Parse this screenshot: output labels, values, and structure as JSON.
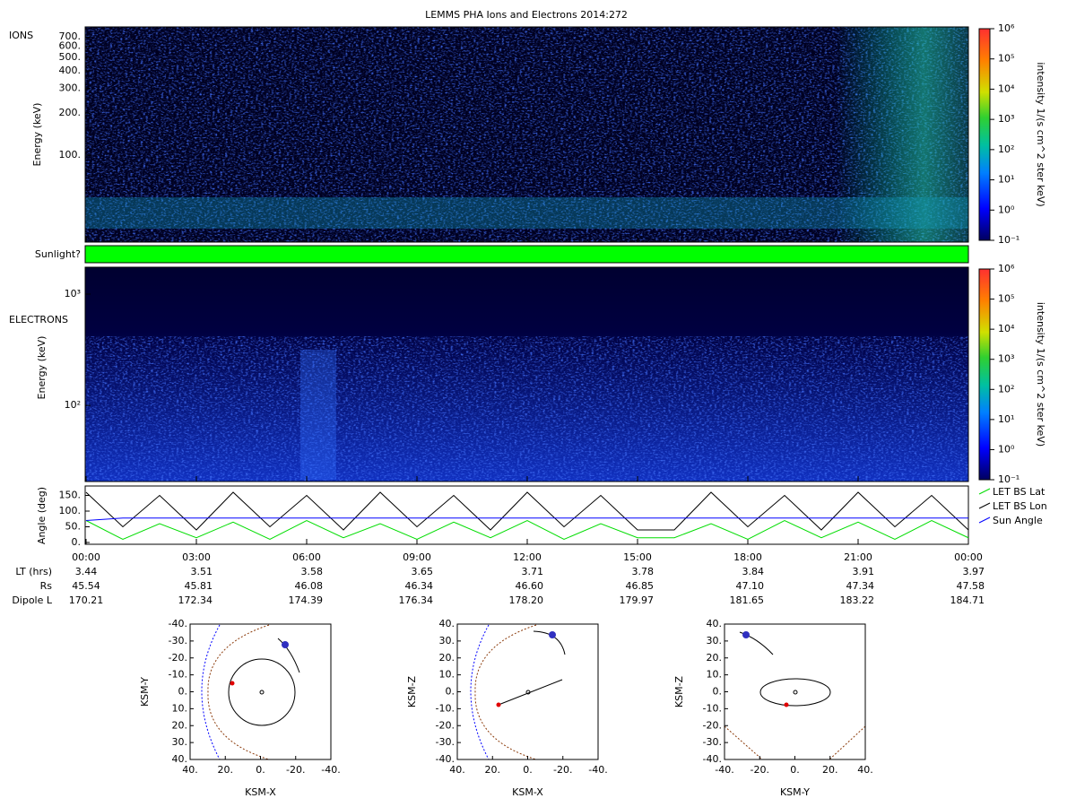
{
  "title": "LEMMS PHA Ions and Electrons  2014:272",
  "ions": {
    "label": "IONS",
    "ylabel": "Energy (keV)",
    "scale": "log",
    "ylim": [
      24,
      826
    ],
    "yticks": [
      {
        "value": 100,
        "label": "100."
      },
      {
        "value": 200,
        "label": "200."
      },
      {
        "value": 300,
        "label": "300."
      },
      {
        "value": 400,
        "label": "400."
      },
      {
        "value": 500,
        "label": "500."
      },
      {
        "value": 600,
        "label": "600."
      },
      {
        "value": 700,
        "label": "700."
      }
    ]
  },
  "sunlight": {
    "label": "Sunlight?",
    "color": "#00ff00"
  },
  "electrons": {
    "label": "ELECTRONS",
    "ylabel": "Energy (keV)",
    "scale": "log",
    "ylim": [
      20.7,
      1745
    ],
    "yticks": [
      {
        "value": 100,
        "label": "10²"
      },
      {
        "value": 1000,
        "label": "10³"
      }
    ]
  },
  "colorbar": {
    "label": "intensity 1/(s cm^2 ster keV)",
    "scale": "log",
    "lim": [
      0.1,
      1000000
    ],
    "ticks": [
      {
        "value": 0.1,
        "label": "10⁻¹"
      },
      {
        "value": 1,
        "label": "10⁰"
      },
      {
        "value": 10,
        "label": "10¹"
      },
      {
        "value": 100,
        "label": "10²"
      },
      {
        "value": 1000,
        "label": "10³"
      },
      {
        "value": 10000,
        "label": "10⁴"
      },
      {
        "value": 100000,
        "label": "10⁵"
      },
      {
        "value": 1000000,
        "label": "10⁶"
      }
    ]
  },
  "angle": {
    "ylabel": "Angle (deg)",
    "ylim": [
      0,
      180
    ],
    "yticks": [
      {
        "value": 0,
        "label": "0."
      },
      {
        "value": 50,
        "label": "50."
      },
      {
        "value": 100,
        "label": "100."
      },
      {
        "value": 150,
        "label": "150."
      }
    ],
    "x": [
      0,
      1,
      2,
      3,
      4,
      5,
      6,
      7,
      8,
      9,
      10,
      11,
      12,
      13,
      14,
      15,
      16,
      17,
      18,
      19,
      20,
      21,
      22,
      23,
      24
    ],
    "series": [
      {
        "name": "LET BS Lat",
        "color": "#00dd00",
        "values": [
          70,
          10,
          60,
          15,
          65,
          10,
          70,
          15,
          60,
          10,
          65,
          15,
          70,
          10,
          60,
          15,
          15,
          60,
          10,
          70,
          15,
          65,
          10,
          70,
          15
        ]
      },
      {
        "name": "LET BS Lon",
        "color": "#000000",
        "values": [
          160,
          50,
          150,
          40,
          160,
          50,
          150,
          40,
          160,
          50,
          150,
          40,
          160,
          50,
          150,
          40,
          40,
          160,
          50,
          150,
          40,
          160,
          50,
          150,
          40
        ]
      },
      {
        "name": "Sun Angle",
        "color": "#0000ff",
        "values": [
          70,
          78,
          78,
          78,
          78,
          78,
          78,
          78,
          78,
          78,
          78,
          78,
          78,
          78,
          78,
          78,
          78,
          78,
          78,
          78,
          78,
          78,
          78,
          78,
          78
        ]
      }
    ]
  },
  "xaxis": {
    "xlim": [
      0,
      24
    ],
    "xticks": [
      {
        "value": 0,
        "label": "00:00"
      },
      {
        "value": 3,
        "label": "03:00"
      },
      {
        "value": 6,
        "label": "06:00"
      },
      {
        "value": 9,
        "label": "09:00"
      },
      {
        "value": 12,
        "label": "12:00"
      },
      {
        "value": 15,
        "label": "15:00"
      },
      {
        "value": 18,
        "label": "18:00"
      },
      {
        "value": 21,
        "label": "21:00"
      },
      {
        "value": 24,
        "label": "00:00"
      }
    ]
  },
  "ephemeris": {
    "rows": [
      {
        "label": "LT (hrs)",
        "values": [
          "3.44",
          "3.51",
          "3.58",
          "3.65",
          "3.71",
          "3.78",
          "3.84",
          "3.91",
          "3.97"
        ]
      },
      {
        "label": "Rs",
        "values": [
          "45.54",
          "45.81",
          "46.08",
          "46.34",
          "46.60",
          "46.85",
          "47.10",
          "47.34",
          "47.58"
        ]
      },
      {
        "label": "Dipole L",
        "values": [
          "170.21",
          "172.34",
          "174.39",
          "176.34",
          "178.20",
          "179.97",
          "181.65",
          "183.22",
          "184.71"
        ]
      }
    ]
  },
  "orbits": [
    {
      "xlabel": "KSM-X",
      "ylabel": "KSM-Y",
      "xlim": [
        40,
        -40
      ],
      "ylim": [
        40,
        -40
      ],
      "xticks": [
        {
          "value": 40,
          "label": "40."
        },
        {
          "value": 20,
          "label": "20."
        },
        {
          "value": 0,
          "label": "0."
        },
        {
          "value": -20,
          "label": "-20."
        },
        {
          "value": -40,
          "label": "-40."
        }
      ],
      "yticks": [
        {
          "value": -40,
          "label": "-40."
        },
        {
          "value": -30,
          "label": "-30."
        },
        {
          "value": -20,
          "label": "-20."
        },
        {
          "value": -10,
          "label": "-10."
        },
        {
          "value": 0,
          "label": "0."
        },
        {
          "value": 10,
          "label": "10."
        },
        {
          "value": 20,
          "label": "20."
        },
        {
          "value": 30,
          "label": "30."
        },
        {
          "value": 40,
          "label": "40."
        }
      ]
    },
    {
      "xlabel": "KSM-X",
      "ylabel": "KSM-Z",
      "xlim": [
        40,
        -40
      ],
      "ylim": [
        -40,
        40
      ],
      "xticks": [
        {
          "value": 40,
          "label": "40."
        },
        {
          "value": 20,
          "label": "20."
        },
        {
          "value": 0,
          "label": "0."
        },
        {
          "value": -20,
          "label": "-20."
        },
        {
          "value": -40,
          "label": "-40."
        }
      ],
      "yticks": [
        {
          "value": 40,
          "label": "40."
        },
        {
          "value": 30,
          "label": "30."
        },
        {
          "value": 20,
          "label": "20."
        },
        {
          "value": 10,
          "label": "10."
        },
        {
          "value": 0,
          "label": "0."
        },
        {
          "value": -10,
          "label": "-10."
        },
        {
          "value": -20,
          "label": "-20."
        },
        {
          "value": -30,
          "label": "-30."
        },
        {
          "value": -40,
          "label": "-40."
        }
      ]
    },
    {
      "xlabel": "KSM-Y",
      "ylabel": "KSM-Z",
      "xlim": [
        -40,
        40
      ],
      "ylim": [
        -40,
        40
      ],
      "xticks": [
        {
          "value": -40,
          "label": "-40."
        },
        {
          "value": -20,
          "label": "-20."
        },
        {
          "value": 0,
          "label": "0."
        },
        {
          "value": 20,
          "label": "20."
        },
        {
          "value": 40,
          "label": "40."
        }
      ],
      "yticks": [
        {
          "value": 40,
          "label": "40."
        },
        {
          "value": 30,
          "label": "30."
        },
        {
          "value": 20,
          "label": "20."
        },
        {
          "value": 10,
          "label": "10."
        },
        {
          "value": 0,
          "label": "0."
        },
        {
          "value": -10,
          "label": "-10."
        },
        {
          "value": -20,
          "label": "-20."
        },
        {
          "value": -30,
          "label": "-30."
        },
        {
          "value": -40,
          "label": "-40."
        }
      ]
    }
  ]
}
